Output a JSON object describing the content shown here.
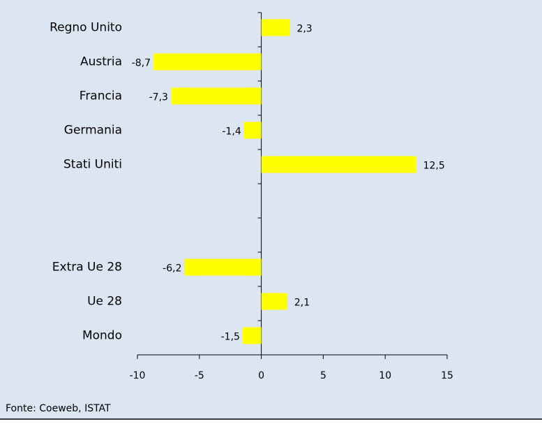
{
  "chart_data": {
    "type": "bar",
    "orientation": "horizontal",
    "categories": [
      "Regno Unito",
      "Austria",
      "Francia",
      "Germania",
      "Stati Uniti",
      null,
      null,
      "Extra Ue 28",
      "Ue 28",
      "Mondo"
    ],
    "values": [
      2.3,
      -8.7,
      -7.3,
      -1.4,
      12.5,
      null,
      null,
      -6.2,
      2.1,
      -1.5
    ],
    "value_labels": [
      "2,3",
      "-8,7",
      "-7,3",
      "-1,4",
      "12,5",
      null,
      null,
      "-6,2",
      "2,1",
      "-1,5"
    ],
    "color": "#ffff00",
    "xlim": [
      -10,
      15
    ],
    "xticks": [
      -10,
      -5,
      0,
      5,
      10,
      15
    ],
    "source": "Fonte: Coeweb, ISTAT"
  }
}
